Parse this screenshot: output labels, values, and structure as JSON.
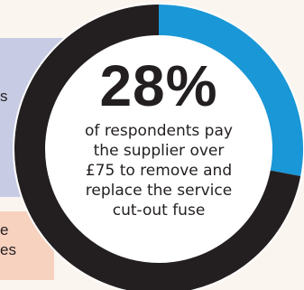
{
  "chart_data": {
    "type": "pie",
    "style": "donut",
    "values": [
      28,
      72
    ],
    "highlight_value_label": "28%",
    "caption_lines": [
      "of respondents pay",
      "the supplier over",
      "£75 to remove and",
      "replace the service",
      "cut-out fuse"
    ],
    "colors": {
      "highlight": "#1a97d6",
      "remainder": "#231f20",
      "text": "#231f20"
    }
  },
  "side_panels": {
    "left_top_fragment": "s",
    "left_bottom_fragments": [
      "e",
      "es"
    ],
    "colors": {
      "background": "#fbf5ef",
      "lavender": "#c7cbe4",
      "peach": "#f7d2bf"
    }
  }
}
